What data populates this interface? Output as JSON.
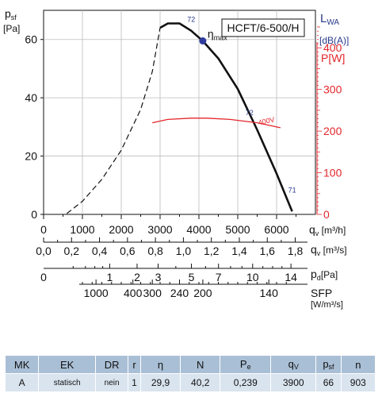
{
  "chart_data": {
    "type": "line",
    "model_label": "HCFT/6-500/H",
    "y_left": {
      "symbol": "p",
      "subscript": "sf",
      "unit": "[Pa]",
      "range": [
        0,
        70
      ],
      "ticks": [
        "0",
        "20",
        "40",
        "60"
      ],
      "tick_values": [
        0,
        20,
        40,
        60
      ]
    },
    "y_right_sound": {
      "symbol": "L",
      "subscript": "WA",
      "unit": "[dB(A)]"
    },
    "y_right_power": {
      "label": "P[W]",
      "range": [
        0,
        490
      ],
      "ticks": [
        "0",
        "100",
        "200",
        "300",
        "400"
      ],
      "tick_values": [
        0,
        100,
        200,
        300,
        400
      ]
    },
    "x_axes": [
      {
        "name": "qv_m3h",
        "symbol": "q",
        "subscript": "v",
        "unit": "[m³/h]",
        "ticks": [
          "0",
          "1000",
          "2000",
          "3000",
          "4000",
          "5000",
          "6000"
        ],
        "tick_values": [
          0,
          1000,
          2000,
          3000,
          4000,
          5000,
          6000
        ]
      },
      {
        "name": "qv_m3s",
        "symbol": "q",
        "subscript": "v",
        "unit": "[m³/s]",
        "ticks": [
          "0,0",
          "0,2",
          "0,4",
          "0,6",
          "0,8",
          "1,0",
          "1,2",
          "1,4",
          "1,6",
          "1,8"
        ],
        "tick_values": [
          0,
          0.2,
          0.4,
          0.6,
          0.8,
          1.0,
          1.2,
          1.4,
          1.6,
          1.8
        ]
      },
      {
        "name": "pd_pa",
        "symbol": "p",
        "subscript": "d",
        "unit": "[Pa]",
        "ticks": [
          "0",
          "1",
          "2",
          "3",
          "5",
          "7",
          "10",
          "14"
        ],
        "tick_values": [
          0,
          1,
          2,
          3,
          5,
          7,
          10,
          14
        ]
      },
      {
        "name": "sfp",
        "label": "SFP",
        "unit": "[W/m³/s]",
        "ticks": [
          "1000",
          "400",
          "300",
          "240",
          "200",
          "140"
        ],
        "tick_qv_m3h": [
          1350,
          2300,
          2800,
          3500,
          4100,
          5800
        ]
      }
    ],
    "series": [
      {
        "key": "pressure_dashed",
        "style": "dashed",
        "color": "#111111",
        "axis": "left",
        "x": [
          600,
          1000,
          1500,
          2000,
          2500,
          2800,
          3000
        ],
        "y": [
          0.3,
          4.5,
          12,
          22,
          36,
          49,
          64
        ]
      },
      {
        "key": "pressure_solid",
        "style": "solid",
        "color": "#111111",
        "axis": "left",
        "x": [
          3000,
          3200,
          3500,
          3800,
          4100,
          4500,
          5000,
          5500,
          6000,
          6400
        ],
        "y": [
          64,
          65.5,
          65.5,
          63,
          59.5,
          53.5,
          43,
          29,
          14,
          1
        ]
      },
      {
        "key": "power_400v",
        "name": "400V",
        "style": "solid",
        "color": "#e4262b",
        "axis": "right_power",
        "x": [
          2800,
          3200,
          3800,
          4200,
          4800,
          5500,
          6100
        ],
        "y": [
          220,
          228,
          231,
          231,
          228,
          220,
          208
        ]
      }
    ],
    "sound_labels": [
      {
        "text": "72",
        "x": 3800,
        "y": 66
      },
      {
        "text": "72",
        "x": 5300,
        "y": 34
      },
      {
        "text": "71",
        "x": 6400,
        "y": 7.5
      }
    ],
    "optimum": {
      "label": "η",
      "label_sub": "max",
      "x": 4100,
      "y": 59.5
    },
    "colors": {
      "pressure": "#111111",
      "power": "#e4262b",
      "sound": "#2a3a8c",
      "optimum": "#2f3c9e"
    },
    "grid": true
  },
  "table": {
    "headers": [
      "MK",
      "EK",
      "DR",
      "r",
      "η",
      "N",
      "P",
      "q",
      "p",
      "n"
    ],
    "header_subs": [
      "",
      "",
      "",
      "",
      "",
      "",
      "e",
      "V",
      "sf",
      ""
    ],
    "row": [
      "A",
      "statisch",
      "nein",
      "1",
      "29,9",
      "40,2",
      "0,239",
      "3900",
      "66",
      "903"
    ]
  }
}
